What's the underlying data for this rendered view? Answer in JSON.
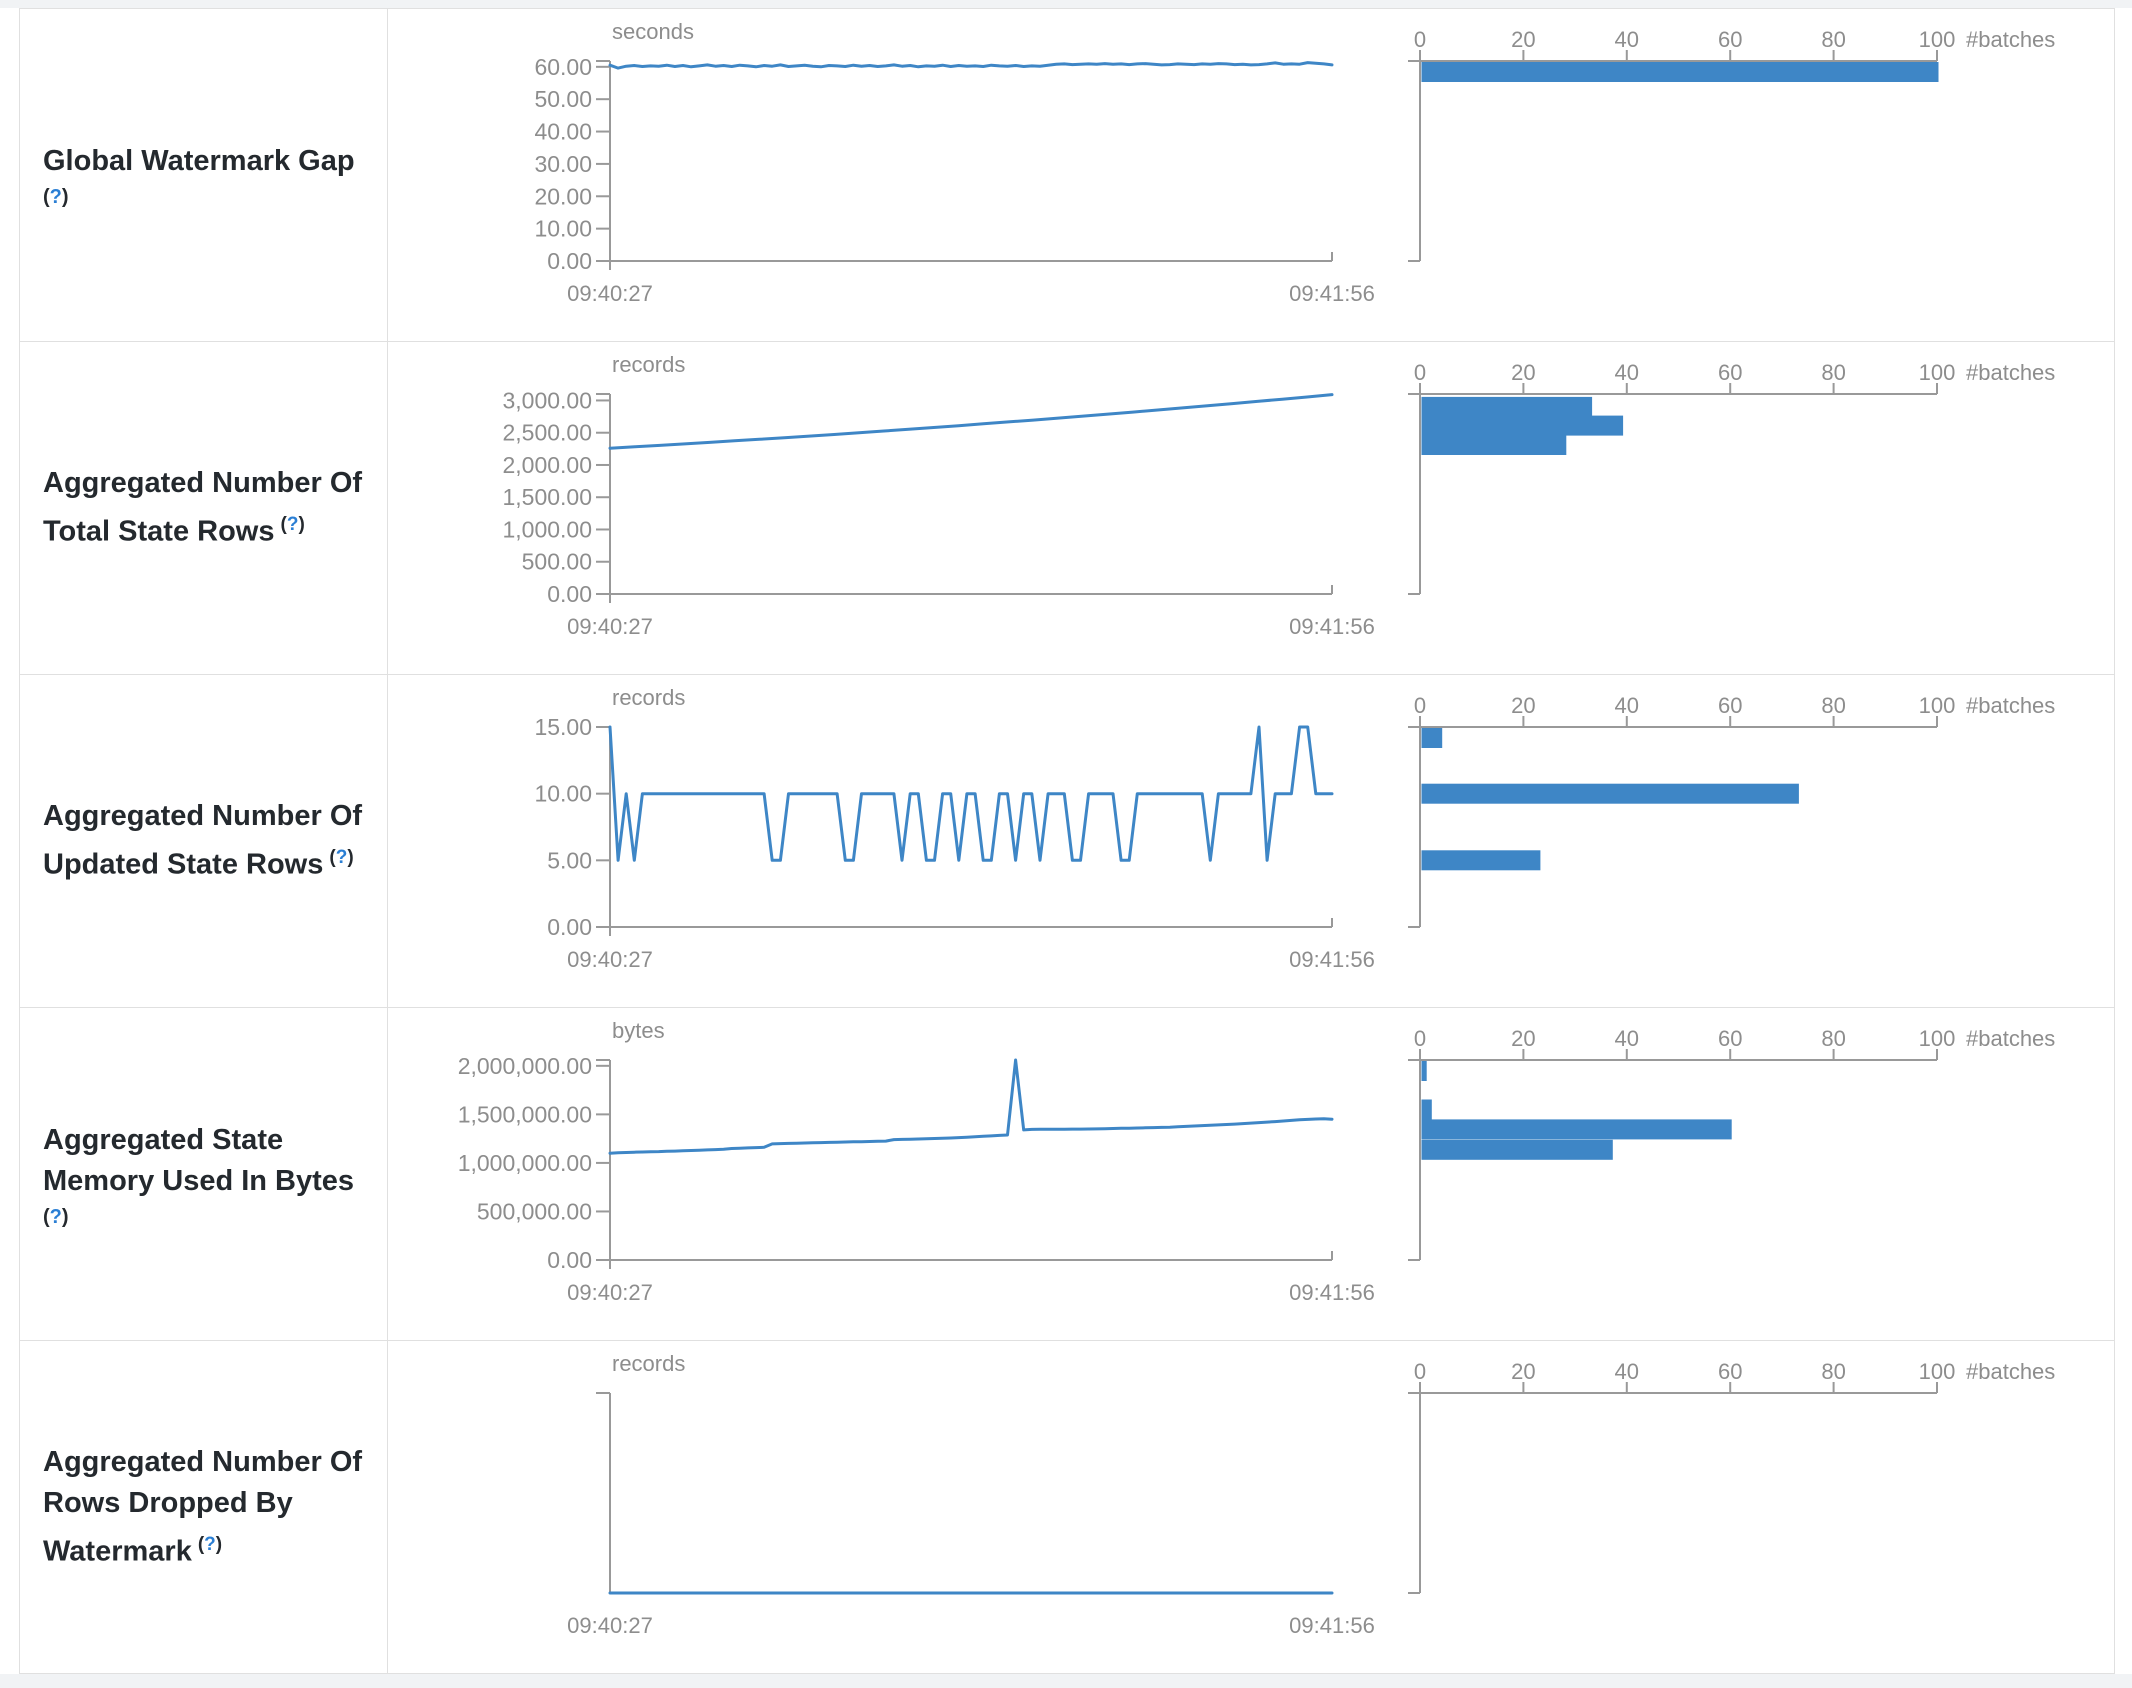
{
  "colors": {
    "series_blue": "#3E86C6",
    "axis_line": "#999999",
    "axis_text": "#8d8d8d",
    "label_text": "#24292e",
    "help_blue": "#2b7fd4",
    "border": "#e0e0e0"
  },
  "time_axis": {
    "start_label": "09:40:27",
    "end_label": "09:41:56"
  },
  "histogram_axis": {
    "ticks": [
      0,
      20,
      40,
      60,
      80,
      100
    ],
    "unit_label": "#batches",
    "max": 100
  },
  "help_marker": {
    "open": "(",
    "q": "?",
    "close": ")"
  },
  "chart_data": [
    {
      "type": "line",
      "label_lines": [
        "Global Watermark Gap"
      ],
      "help_inline": false,
      "unit": "seconds",
      "ylim": 61.8,
      "yticks": [
        {
          "v": 60,
          "t": "60.00"
        },
        {
          "v": 50,
          "t": "50.00"
        },
        {
          "v": 40,
          "t": "40.00"
        },
        {
          "v": 30,
          "t": "30.00"
        },
        {
          "v": 20,
          "t": "20.00"
        },
        {
          "v": 10,
          "t": "10.00"
        },
        {
          "v": 0,
          "t": "0.00"
        }
      ],
      "values": [
        60.5,
        59.6,
        60.2,
        60.4,
        60.1,
        60.3,
        60.2,
        60.5,
        60.1,
        60.4,
        60.0,
        60.3,
        60.6,
        60.2,
        60.4,
        60.1,
        60.5,
        60.3,
        60.0,
        60.4,
        60.2,
        60.6,
        60.1,
        60.3,
        60.5,
        60.2,
        60.0,
        60.4,
        60.3,
        60.1,
        60.5,
        60.2,
        60.4,
        60.1,
        60.3,
        60.6,
        60.2,
        60.4,
        60.0,
        60.3,
        60.2,
        60.5,
        60.1,
        60.4,
        60.2,
        60.3,
        60.1,
        60.5,
        60.3,
        60.2,
        60.4,
        60.1,
        60.3,
        60.2,
        60.5,
        60.8,
        60.9,
        60.7,
        60.8,
        60.9,
        60.8,
        61.0,
        60.8,
        60.9,
        60.7,
        60.9,
        61.0,
        60.8,
        60.6,
        60.7,
        60.9,
        60.8,
        60.7,
        60.9,
        60.8,
        61.0,
        60.9,
        60.7,
        60.8,
        60.6,
        60.7,
        60.9,
        61.2,
        60.8,
        60.9,
        60.8,
        61.3,
        61.1,
        60.9,
        60.6
      ],
      "histogram_bins": [
        {
          "v": 60,
          "count": 100
        }
      ]
    },
    {
      "type": "line",
      "label_lines": [
        "Aggregated Number Of",
        "Total State Rows"
      ],
      "help_inline": true,
      "unit": "records",
      "ylim": 3100,
      "yticks": [
        {
          "v": 3000,
          "t": "3,000.00"
        },
        {
          "v": 2500,
          "t": "2,500.00"
        },
        {
          "v": 2000,
          "t": "2,000.00"
        },
        {
          "v": 1500,
          "t": "1,500.00"
        },
        {
          "v": 1000,
          "t": "1,000.00"
        },
        {
          "v": 500,
          "t": "500.00"
        },
        {
          "v": 0,
          "t": "0.00"
        }
      ],
      "values": [
        2260,
        2282,
        2304,
        2327,
        2350,
        2374,
        2398,
        2422,
        2448,
        2473,
        2499,
        2526,
        2553,
        2581,
        2609,
        2638,
        2667,
        2696,
        2726,
        2757,
        2788,
        2820,
        2852,
        2884,
        2917,
        2951,
        2985,
        3019,
        3054,
        3090
      ],
      "histogram_bins": [
        {
          "v": 2900,
          "count": 33
        },
        {
          "v": 2610,
          "count": 39
        },
        {
          "v": 2310,
          "count": 28
        }
      ]
    },
    {
      "type": "line",
      "label_lines": [
        "Aggregated Number Of",
        "Updated State Rows"
      ],
      "help_inline": true,
      "unit": "records",
      "ylim": 15,
      "yticks": [
        {
          "v": 15,
          "t": "15.00"
        },
        {
          "v": 10,
          "t": "10.00"
        },
        {
          "v": 5,
          "t": "5.00"
        },
        {
          "v": 0,
          "t": "0.00"
        }
      ],
      "values": [
        15,
        5,
        10,
        5,
        10,
        10,
        10,
        10,
        10,
        10,
        10,
        10,
        10,
        10,
        10,
        10,
        10,
        10,
        10,
        10,
        5,
        5,
        10,
        10,
        10,
        10,
        10,
        10,
        10,
        5,
        5,
        10,
        10,
        10,
        10,
        10,
        5,
        10,
        10,
        5,
        5,
        10,
        10,
        5,
        10,
        10,
        5,
        5,
        10,
        10,
        5,
        10,
        10,
        5,
        10,
        10,
        10,
        5,
        5,
        10,
        10,
        10,
        10,
        5,
        5,
        10,
        10,
        10,
        10,
        10,
        10,
        10,
        10,
        10,
        5,
        10,
        10,
        10,
        10,
        10,
        15,
        5,
        10,
        10,
        10,
        15,
        15,
        10,
        10,
        10
      ],
      "histogram_bins": [
        {
          "v": 15,
          "count": 4
        },
        {
          "v": 10,
          "count": 73
        },
        {
          "v": 5,
          "count": 23
        }
      ]
    },
    {
      "type": "line",
      "label_lines": [
        "Aggregated State",
        "Memory Used In Bytes"
      ],
      "help_inline": false,
      "unit": "bytes",
      "ylim": 2060000,
      "yticks": [
        {
          "v": 2000000,
          "t": "2,000,000.00"
        },
        {
          "v": 1500000,
          "t": "1,500,000.00"
        },
        {
          "v": 1000000,
          "t": "1,000,000.00"
        },
        {
          "v": 500000,
          "t": "500,000.00"
        },
        {
          "v": 0,
          "t": "0.00"
        }
      ],
      "values": [
        1100000,
        1104000,
        1107000,
        1110000,
        1112000,
        1115000,
        1117000,
        1120000,
        1122000,
        1125000,
        1128000,
        1131000,
        1134000,
        1137000,
        1140000,
        1148000,
        1152000,
        1155000,
        1158000,
        1161000,
        1196000,
        1199000,
        1201000,
        1203000,
        1205000,
        1207000,
        1209000,
        1211000,
        1213000,
        1215000,
        1217000,
        1219000,
        1221000,
        1223000,
        1225000,
        1240000,
        1242000,
        1244000,
        1246000,
        1248000,
        1251000,
        1254000,
        1257000,
        1261000,
        1265000,
        1270000,
        1274000,
        1278000,
        1283000,
        1288000,
        2060000,
        1340000,
        1345000,
        1346000,
        1346000,
        1347000,
        1347000,
        1348000,
        1348000,
        1349000,
        1350000,
        1352000,
        1354000,
        1356000,
        1358000,
        1360000,
        1362000,
        1364000,
        1366000,
        1368000,
        1372000,
        1376000,
        1380000,
        1384000,
        1388000,
        1392000,
        1396000,
        1400000,
        1405000,
        1410000,
        1415000,
        1420000,
        1426000,
        1432000,
        1438000,
        1444000,
        1448000,
        1452000,
        1455000,
        1450000
      ],
      "histogram_bins": [
        {
          "v": 1960000,
          "count": 1
        },
        {
          "v": 1550000,
          "count": 2
        },
        {
          "v": 1345000,
          "count": 60
        },
        {
          "v": 1135000,
          "count": 37
        }
      ]
    },
    {
      "type": "line",
      "label_lines": [
        "Aggregated Number Of",
        "Rows Dropped By",
        "Watermark"
      ],
      "help_inline": true,
      "unit": "records",
      "ylim": 1,
      "yticks": [],
      "values": [
        0,
        0
      ],
      "histogram_bins": []
    }
  ]
}
